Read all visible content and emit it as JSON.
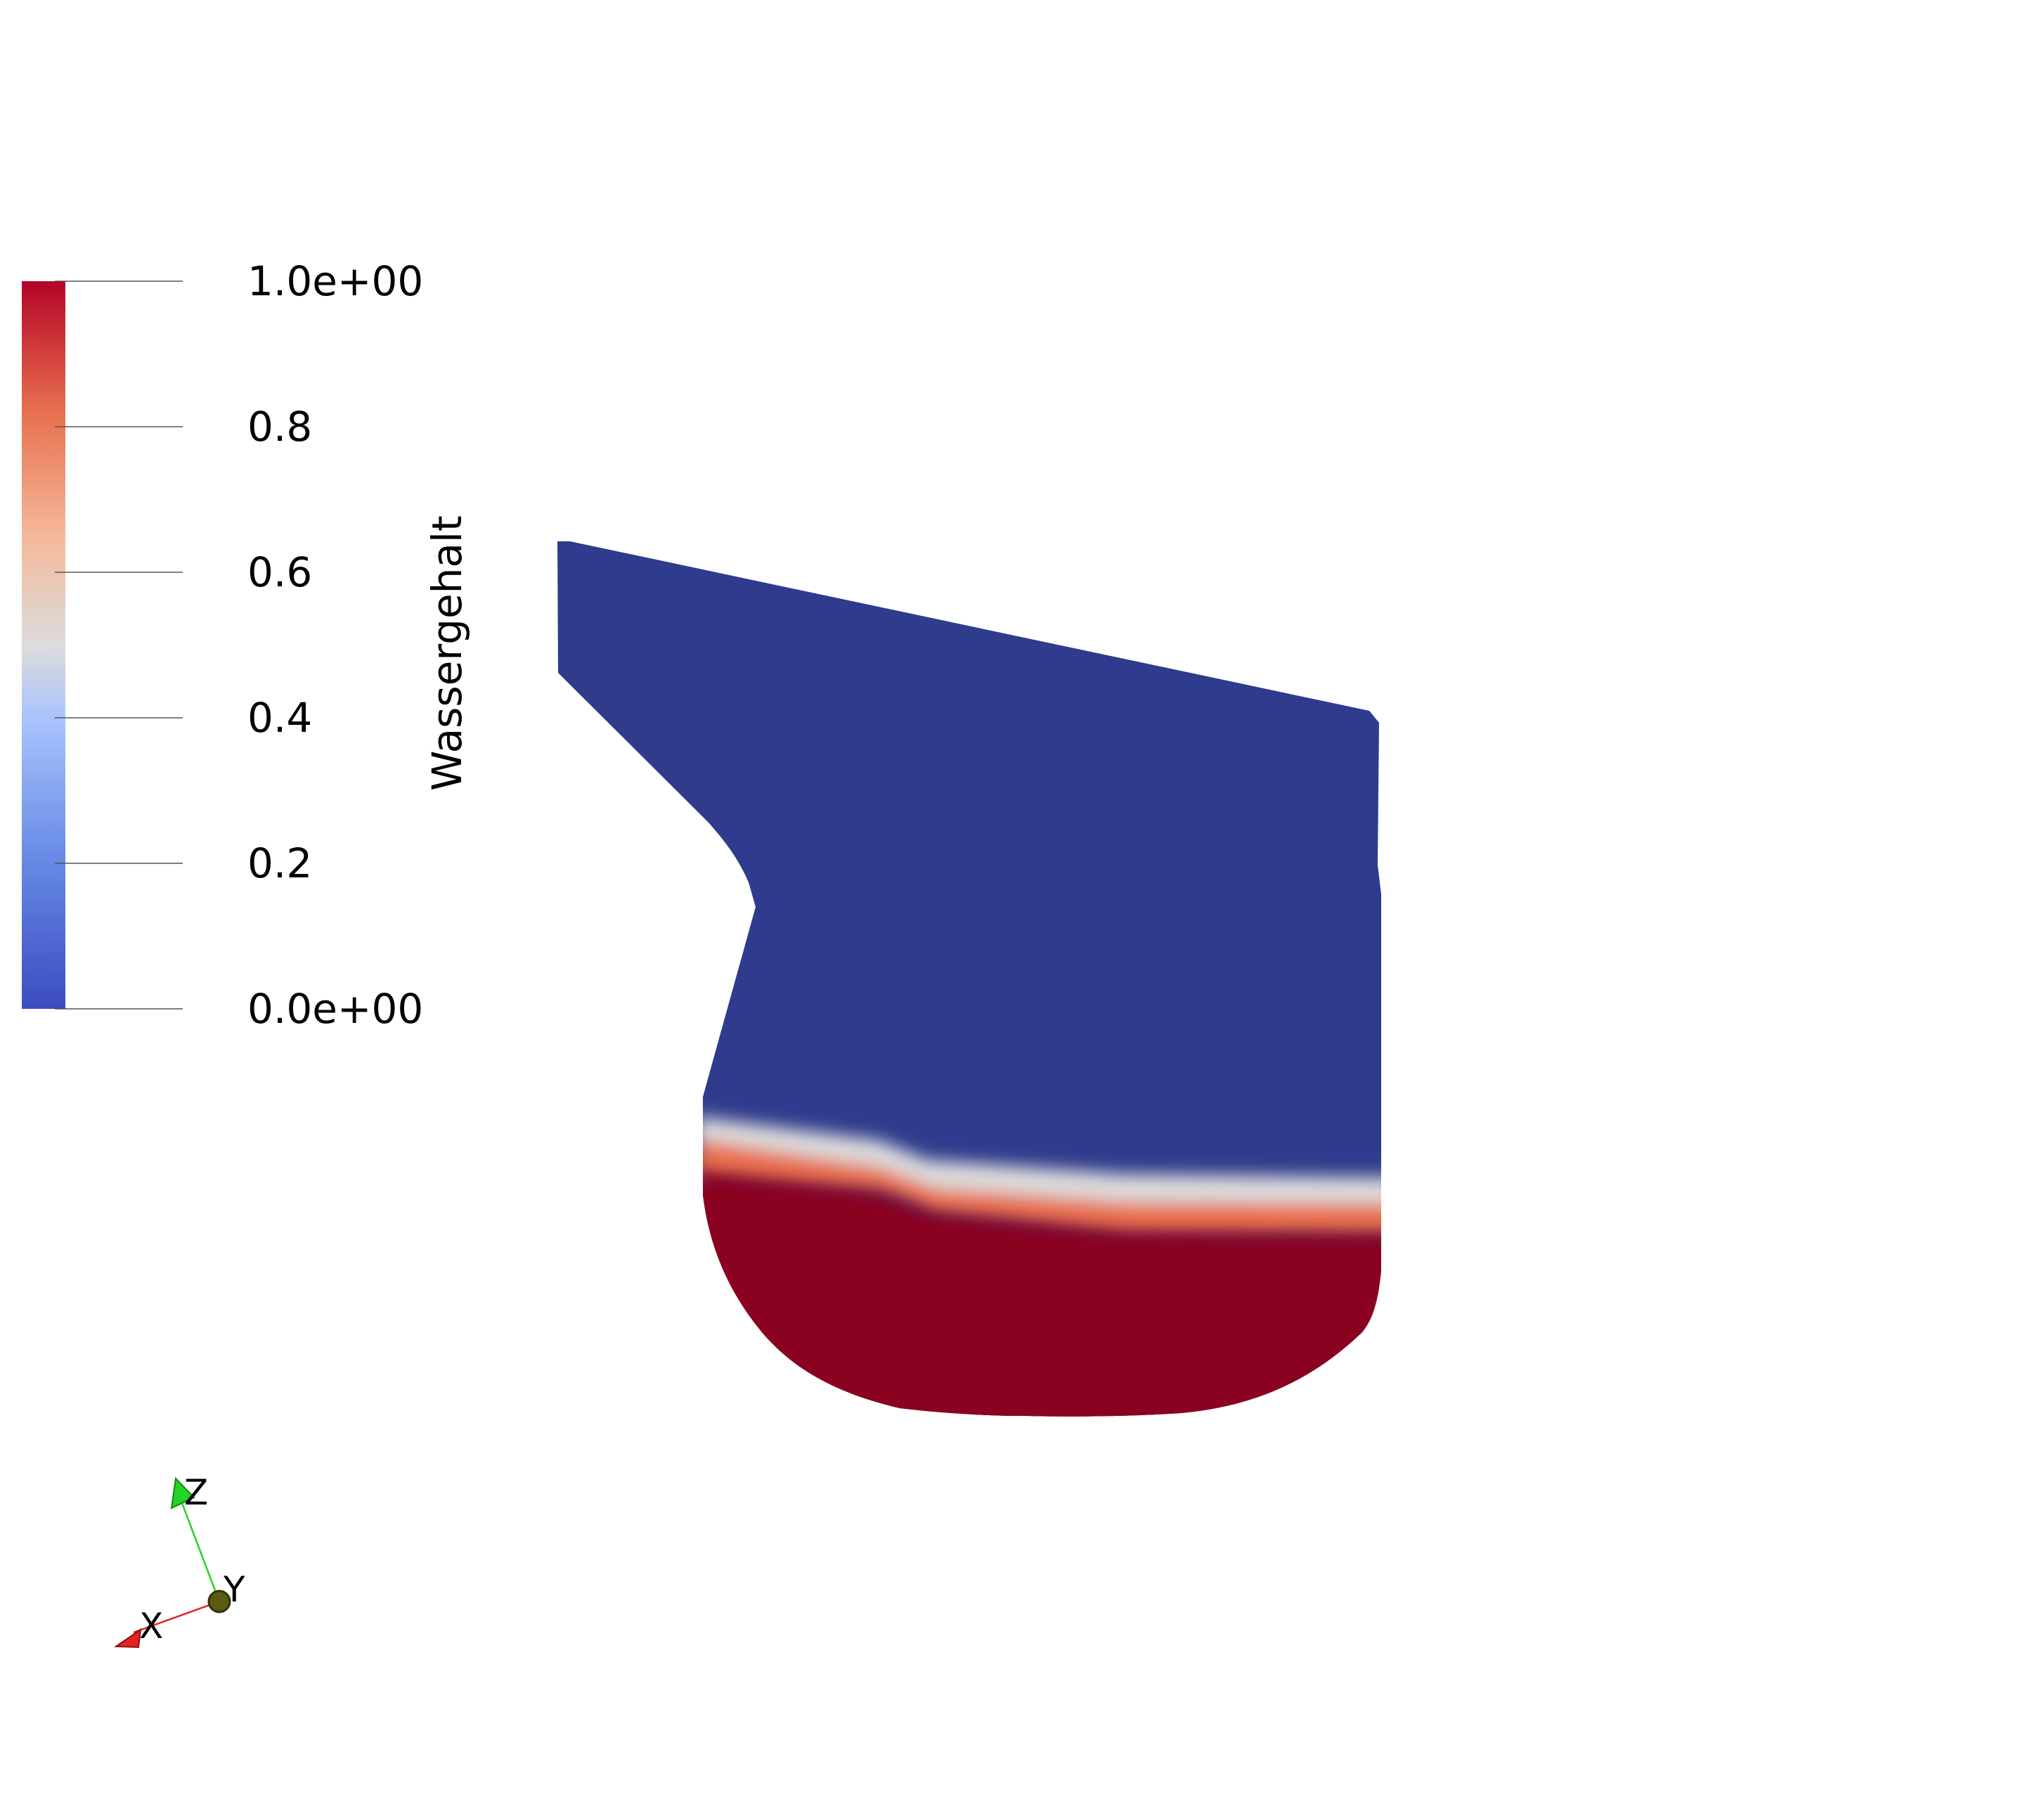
{
  "colorbar": {
    "title": "Wassergehalt",
    "tick_labels": [
      "1.0e+00",
      "0.8",
      "0.6",
      "0.4",
      "0.2",
      "0.0e+00"
    ],
    "tick_values": [
      1.0,
      0.8,
      0.6,
      0.4,
      0.2,
      0.0
    ],
    "range": [
      0.0,
      1.0
    ],
    "colormap": "Cool to Warm",
    "colors": {
      "max": "#b40426",
      "high": "#e8704f",
      "mid_high": "#f5b89a",
      "mid": "#dcdcdc",
      "mid_low": "#a9c4fd",
      "low": "#6588e4",
      "min": "#3b4cc0"
    }
  },
  "mesh": {
    "field": "Wassergehalt",
    "dry_color": "#2f3b8c",
    "wet_color": "#8b0220",
    "interface_colors": [
      "#2f3b8c",
      "#dcdcdc",
      "#e8704f",
      "#8b0220"
    ]
  },
  "orientation_axes": {
    "x_label": "X",
    "y_label": "Y",
    "z_label": "Z",
    "x_color": "#e32420",
    "y_color": "#5a5a10",
    "z_color": "#24d424"
  }
}
